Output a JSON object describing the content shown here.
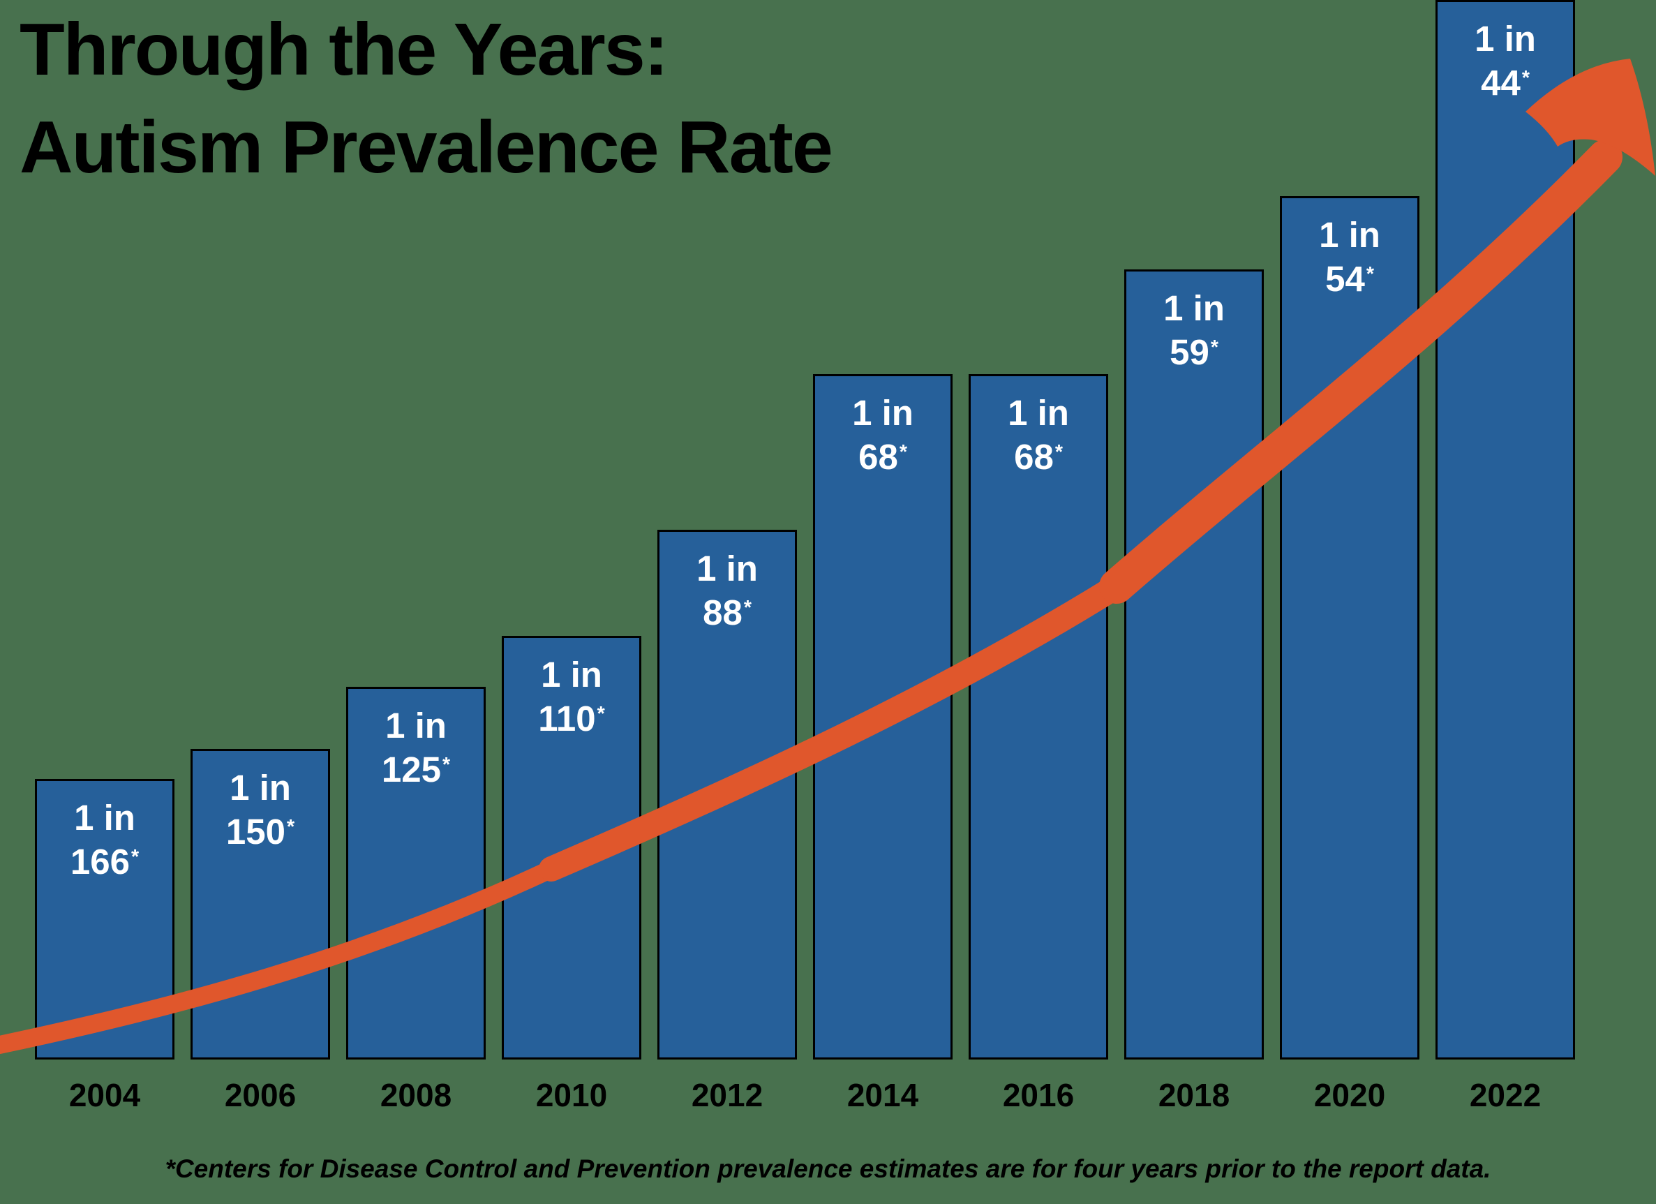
{
  "title": {
    "line1": "Through the Years:",
    "line2": "Autism Prevalence Rate"
  },
  "footnote": {
    "text": "*Centers for Disease Control and Prevention prevalence estimates are for four years prior to the report data."
  },
  "colors": {
    "background": "#48714E",
    "bar_fill": "#26609A",
    "bar_border": "#000000",
    "bar_label": "#FFFFFF",
    "arrow": "#E0572C",
    "text": "#000000"
  },
  "chart_data": {
    "type": "bar",
    "title": "Through the Years: Autism Prevalence Rate",
    "categories": [
      "2004",
      "2006",
      "2008",
      "2010",
      "2012",
      "2014",
      "2016",
      "2018",
      "2020",
      "2022"
    ],
    "values": [
      166,
      150,
      125,
      110,
      88,
      68,
      68,
      59,
      54,
      44
    ],
    "bar_labels": [
      "1 in 166*",
      "1 in 150*",
      "1 in 125*",
      "1 in 110*",
      "1 in 88*",
      "1 in 68*",
      "1 in 68*",
      "1 in 59*",
      "1 in 54*",
      "1 in 44*"
    ],
    "ratio_prefix": "1 in",
    "asterisk_marker": "*",
    "xlabel": "",
    "ylabel": "",
    "grid": false,
    "legend": false,
    "annotation": "orange upward-curving trend arrow from bottom-left to top-right"
  }
}
